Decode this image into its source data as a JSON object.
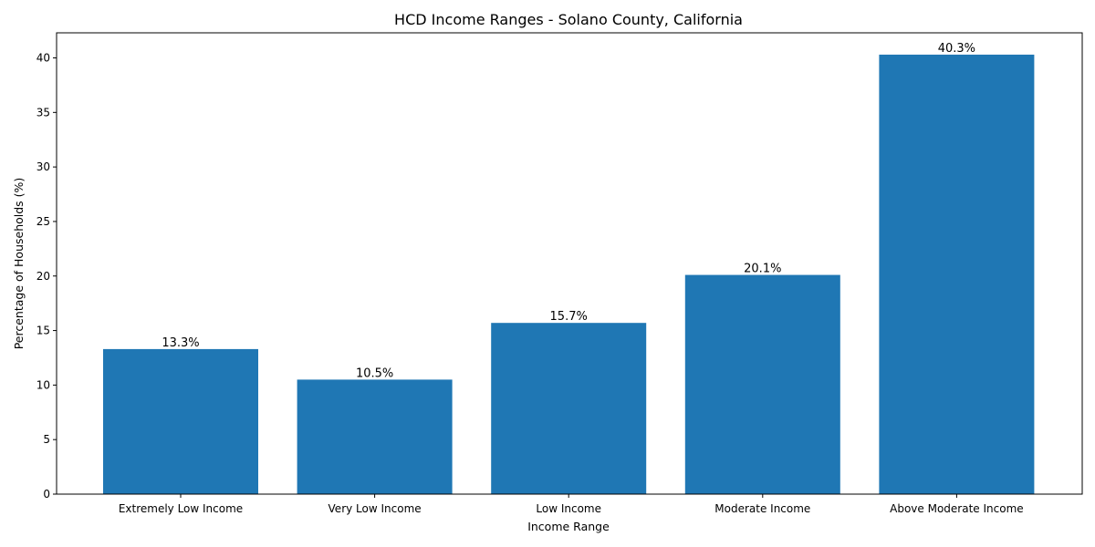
{
  "chart_data": {
    "type": "bar",
    "title": "HCD Income Ranges - Solano County, California",
    "xlabel": "Income Range",
    "ylabel": "Percentage of Households (%)",
    "categories": [
      "Extremely Low Income",
      "Very Low Income",
      "Low Income",
      "Moderate Income",
      "Above Moderate Income"
    ],
    "values": [
      13.3,
      10.5,
      15.7,
      20.1,
      40.3
    ],
    "data_labels": [
      "13.3%",
      "10.5%",
      "15.7%",
      "20.1%",
      "40.3%"
    ],
    "ylim": [
      0,
      42.3
    ],
    "yticks": [
      0,
      5,
      10,
      15,
      20,
      25,
      30,
      35,
      40
    ],
    "bar_color": "#1f77b4",
    "grid": false
  }
}
